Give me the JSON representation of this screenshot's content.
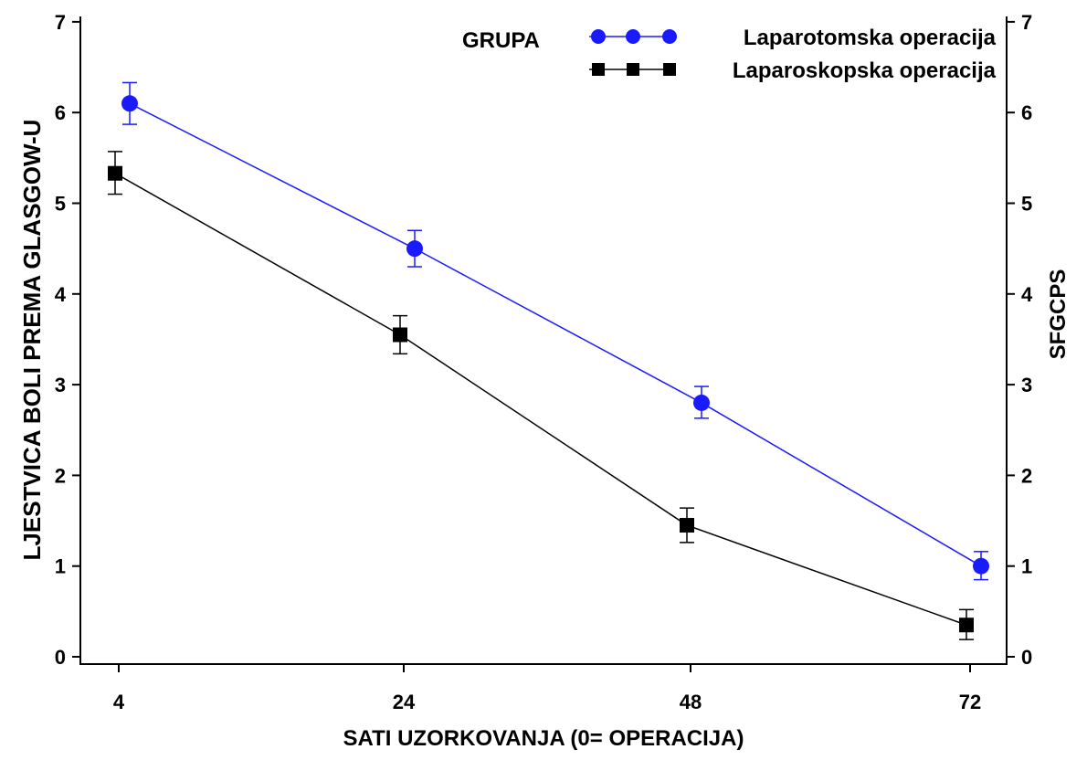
{
  "chart_data": {
    "type": "line",
    "title": "",
    "xlabel": "SATI  UZORKOVANJA  (0= OPERACIJA)",
    "ylabel_left": "LJESTVICA BOLI PREMA GLASGOW-U",
    "ylabel_right": "SFGCPS",
    "legend_title": "GRUPA",
    "legend_position": "top-right",
    "grid": false,
    "x_ticks": [
      4,
      24,
      48,
      72
    ],
    "y_ticks": [
      0,
      1,
      2,
      3,
      4,
      5,
      6,
      7
    ],
    "ylim": [
      0,
      7
    ],
    "series": [
      {
        "name": "Laparotomska  operacija",
        "color": "#1a1aff",
        "marker": "circle",
        "x": [
          4,
          24,
          48,
          72
        ],
        "y": [
          6.1,
          4.5,
          2.8,
          1.0
        ],
        "err_low": [
          5.87,
          4.3,
          2.63,
          0.85
        ],
        "err_high": [
          6.33,
          4.7,
          2.98,
          1.16
        ]
      },
      {
        "name": "Laparoskopska  operacija",
        "color": "#000000",
        "marker": "square",
        "x": [
          4,
          24,
          48,
          72
        ],
        "y": [
          5.33,
          3.55,
          1.45,
          0.35
        ],
        "err_low": [
          5.1,
          3.34,
          1.26,
          0.19
        ],
        "err_high": [
          5.57,
          3.76,
          1.64,
          0.52
        ]
      }
    ]
  }
}
